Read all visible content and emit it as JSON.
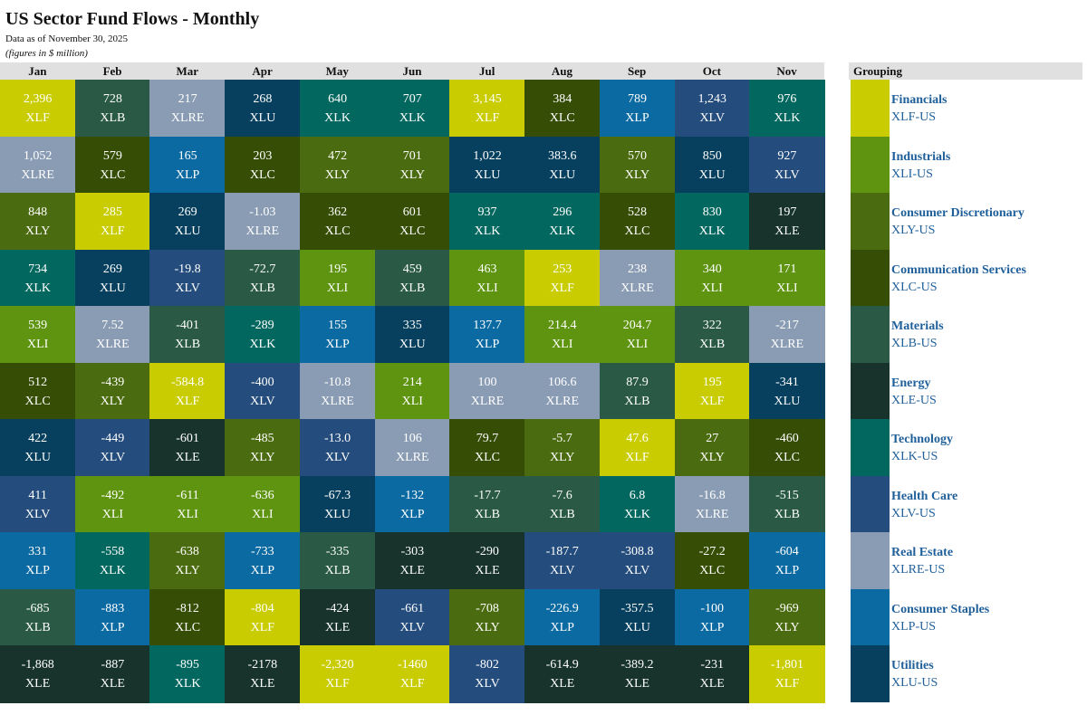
{
  "header": {
    "title": "US Sector Fund Flows - Monthly",
    "subtitle": "Data as of November 30, 2025",
    "units": "(figures in $ million)"
  },
  "legend": {
    "title": "Grouping",
    "items": [
      {
        "ticker": "XLF",
        "name": "Financials",
        "code": "XLF-US",
        "color": "#c9cc00"
      },
      {
        "ticker": "XLI",
        "name": "Industrials",
        "code": "XLI-US",
        "color": "#5e9410"
      },
      {
        "ticker": "XLY",
        "name": "Consumer Discretionary",
        "code": "XLY-US",
        "color": "#4b6b10"
      },
      {
        "ticker": "XLC",
        "name": "Communication Services",
        "code": "XLC-US",
        "color": "#354d05"
      },
      {
        "ticker": "XLB",
        "name": "Materials",
        "code": "XLB-US",
        "color": "#2a5a45"
      },
      {
        "ticker": "XLE",
        "name": "Energy",
        "code": "XLE-US",
        "color": "#17332b"
      },
      {
        "ticker": "XLK",
        "name": "Technology",
        "code": "XLK-US",
        "color": "#02675f"
      },
      {
        "ticker": "XLV",
        "name": "Health Care",
        "code": "XLV-US",
        "color": "#244c7c"
      },
      {
        "ticker": "XLRE",
        "name": "Real Estate",
        "code": "XLRE-US",
        "color": "#8a9cb4"
      },
      {
        "ticker": "XLP",
        "name": "Consumer Staples",
        "code": "XLP-US",
        "color": "#0c6aa2"
      },
      {
        "ticker": "XLU",
        "name": "Utilities",
        "code": "XLU-US",
        "color": "#06405e"
      }
    ]
  },
  "chart_data": {
    "type": "table",
    "title": "US Sector Fund Flows - Monthly",
    "units": "$ million",
    "months": [
      {
        "label": "Jan",
        "cells": [
          {
            "value": "2,396",
            "ticker": "XLF"
          },
          {
            "value": "1,052",
            "ticker": "XLRE"
          },
          {
            "value": "848",
            "ticker": "XLY"
          },
          {
            "value": "734",
            "ticker": "XLK"
          },
          {
            "value": "539",
            "ticker": "XLI"
          },
          {
            "value": "512",
            "ticker": "XLC"
          },
          {
            "value": "422",
            "ticker": "XLU"
          },
          {
            "value": "411",
            "ticker": "XLV"
          },
          {
            "value": "331",
            "ticker": "XLP"
          },
          {
            "value": "-685",
            "ticker": "XLB"
          },
          {
            "value": "-1,868",
            "ticker": "XLE"
          }
        ]
      },
      {
        "label": "Feb",
        "cells": [
          {
            "value": "728",
            "ticker": "XLB"
          },
          {
            "value": "579",
            "ticker": "XLC"
          },
          {
            "value": "285",
            "ticker": "XLF"
          },
          {
            "value": "269",
            "ticker": "XLU"
          },
          {
            "value": "7.52",
            "ticker": "XLRE"
          },
          {
            "value": "-439",
            "ticker": "XLY"
          },
          {
            "value": "-449",
            "ticker": "XLV"
          },
          {
            "value": "-492",
            "ticker": "XLI"
          },
          {
            "value": "-558",
            "ticker": "XLK"
          },
          {
            "value": "-883",
            "ticker": "XLP"
          },
          {
            "value": "-887",
            "ticker": "XLE"
          }
        ]
      },
      {
        "label": "Mar",
        "cells": [
          {
            "value": "217",
            "ticker": "XLRE"
          },
          {
            "value": "165",
            "ticker": "XLP"
          },
          {
            "value": "269",
            "ticker": "XLU"
          },
          {
            "value": "-19.8",
            "ticker": "XLV"
          },
          {
            "value": "-401",
            "ticker": "XLB"
          },
          {
            "value": "-584.8",
            "ticker": "XLF"
          },
          {
            "value": "-601",
            "ticker": "XLE"
          },
          {
            "value": "-611",
            "ticker": "XLI"
          },
          {
            "value": "-638",
            "ticker": "XLY"
          },
          {
            "value": "-812",
            "ticker": "XLC"
          },
          {
            "value": "-895",
            "ticker": "XLK"
          }
        ]
      },
      {
        "label": "Apr",
        "cells": [
          {
            "value": "268",
            "ticker": "XLU"
          },
          {
            "value": "203",
            "ticker": "XLC"
          },
          {
            "value": "-1.03",
            "ticker": "XLRE"
          },
          {
            "value": "-72.7",
            "ticker": "XLB"
          },
          {
            "value": "-289",
            "ticker": "XLK"
          },
          {
            "value": "-400",
            "ticker": "XLV"
          },
          {
            "value": "-485",
            "ticker": "XLY"
          },
          {
            "value": "-636",
            "ticker": "XLI"
          },
          {
            "value": "-733",
            "ticker": "XLP"
          },
          {
            "value": "-804",
            "ticker": "XLF"
          },
          {
            "value": "-2178",
            "ticker": "XLE"
          }
        ]
      },
      {
        "label": "May",
        "cells": [
          {
            "value": "640",
            "ticker": "XLK"
          },
          {
            "value": "472",
            "ticker": "XLY"
          },
          {
            "value": "362",
            "ticker": "XLC"
          },
          {
            "value": "195",
            "ticker": "XLI"
          },
          {
            "value": "155",
            "ticker": "XLP"
          },
          {
            "value": "-10.8",
            "ticker": "XLRE"
          },
          {
            "value": "-13.0",
            "ticker": "XLV"
          },
          {
            "value": "-67.3",
            "ticker": "XLU"
          },
          {
            "value": "-335",
            "ticker": "XLB"
          },
          {
            "value": "-424",
            "ticker": "XLE"
          },
          {
            "value": "-2,320",
            "ticker": "XLF"
          }
        ]
      },
      {
        "label": "Jun",
        "cells": [
          {
            "value": "707",
            "ticker": "XLK"
          },
          {
            "value": "701",
            "ticker": "XLY"
          },
          {
            "value": "601",
            "ticker": "XLC"
          },
          {
            "value": "459",
            "ticker": "XLB"
          },
          {
            "value": "335",
            "ticker": "XLU"
          },
          {
            "value": "214",
            "ticker": "XLI"
          },
          {
            "value": "106",
            "ticker": "XLRE"
          },
          {
            "value": "-132",
            "ticker": "XLP"
          },
          {
            "value": "-303",
            "ticker": "XLE"
          },
          {
            "value": "-661",
            "ticker": "XLV"
          },
          {
            "value": "-1460",
            "ticker": "XLF"
          }
        ]
      },
      {
        "label": "Jul",
        "cells": [
          {
            "value": "3,145",
            "ticker": "XLF"
          },
          {
            "value": "1,022",
            "ticker": "XLU"
          },
          {
            "value": "937",
            "ticker": "XLK"
          },
          {
            "value": "463",
            "ticker": "XLI"
          },
          {
            "value": "137.7",
            "ticker": "XLP"
          },
          {
            "value": "100",
            "ticker": "XLRE"
          },
          {
            "value": "79.7",
            "ticker": "XLC"
          },
          {
            "value": "-17.7",
            "ticker": "XLB"
          },
          {
            "value": "-290",
            "ticker": "XLE"
          },
          {
            "value": "-708",
            "ticker": "XLY"
          },
          {
            "value": "-802",
            "ticker": "XLV"
          }
        ]
      },
      {
        "label": "Aug",
        "cells": [
          {
            "value": "384",
            "ticker": "XLC"
          },
          {
            "value": "383.6",
            "ticker": "XLU"
          },
          {
            "value": "296",
            "ticker": "XLK"
          },
          {
            "value": "253",
            "ticker": "XLF"
          },
          {
            "value": "214.4",
            "ticker": "XLI"
          },
          {
            "value": "106.6",
            "ticker": "XLRE"
          },
          {
            "value": "-5.7",
            "ticker": "XLY"
          },
          {
            "value": "-7.6",
            "ticker": "XLB"
          },
          {
            "value": "-187.7",
            "ticker": "XLV"
          },
          {
            "value": "-226.9",
            "ticker": "XLP"
          },
          {
            "value": "-614.9",
            "ticker": "XLE"
          }
        ]
      },
      {
        "label": "Sep",
        "cells": [
          {
            "value": "789",
            "ticker": "XLP"
          },
          {
            "value": "570",
            "ticker": "XLY"
          },
          {
            "value": "528",
            "ticker": "XLC"
          },
          {
            "value": "238",
            "ticker": "XLRE"
          },
          {
            "value": "204.7",
            "ticker": "XLI"
          },
          {
            "value": "87.9",
            "ticker": "XLB"
          },
          {
            "value": "47.6",
            "ticker": "XLF"
          },
          {
            "value": "6.8",
            "ticker": "XLK"
          },
          {
            "value": "-308.8",
            "ticker": "XLV"
          },
          {
            "value": "-357.5",
            "ticker": "XLU"
          },
          {
            "value": "-389.2",
            "ticker": "XLE"
          }
        ]
      },
      {
        "label": "Oct",
        "cells": [
          {
            "value": "1,243",
            "ticker": "XLV"
          },
          {
            "value": "850",
            "ticker": "XLU"
          },
          {
            "value": "830",
            "ticker": "XLK"
          },
          {
            "value": "340",
            "ticker": "XLI"
          },
          {
            "value": "322",
            "ticker": "XLB"
          },
          {
            "value": "195",
            "ticker": "XLF"
          },
          {
            "value": "27",
            "ticker": "XLY"
          },
          {
            "value": "-16.8",
            "ticker": "XLRE"
          },
          {
            "value": "-27.2",
            "ticker": "XLC"
          },
          {
            "value": "-100",
            "ticker": "XLP"
          },
          {
            "value": "-231",
            "ticker": "XLE"
          }
        ]
      },
      {
        "label": "Nov",
        "cells": [
          {
            "value": "976",
            "ticker": "XLK"
          },
          {
            "value": "927",
            "ticker": "XLV"
          },
          {
            "value": "197",
            "ticker": "XLE"
          },
          {
            "value": "171",
            "ticker": "XLI"
          },
          {
            "value": "-217",
            "ticker": "XLRE"
          },
          {
            "value": "-341",
            "ticker": "XLU"
          },
          {
            "value": "-460",
            "ticker": "XLC"
          },
          {
            "value": "-515",
            "ticker": "XLB"
          },
          {
            "value": "-604",
            "ticker": "XLP"
          },
          {
            "value": "-969",
            "ticker": "XLY"
          },
          {
            "value": "-1,801",
            "ticker": "XLF"
          }
        ]
      }
    ]
  }
}
